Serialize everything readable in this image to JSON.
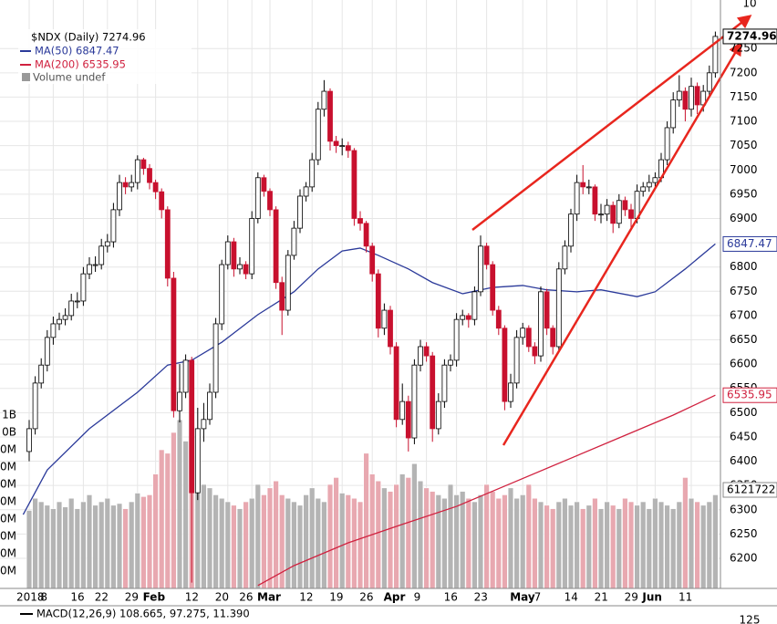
{
  "chart_data": {
    "type": "candlestick",
    "title": "$NDX (Daily) 7274.96",
    "open": [
      6420,
      6467,
      6561,
      6598,
      6655,
      6683,
      6692,
      6700,
      6730,
      6730,
      6786,
      6805,
      6805,
      6843,
      6852,
      6918,
      6974,
      6965,
      6974,
      7021,
      7003,
      6974,
      6955,
      6918,
      6777,
      6504,
      6542,
      6608,
      6335,
      6467,
      6486,
      6542,
      6683,
      6805,
      6852,
      6796,
      6805,
      6786,
      6900,
      6984,
      6956,
      6918,
      6768,
      6711,
      6824,
      6880,
      6946,
      6965,
      7021,
      7125,
      7162,
      7059,
      7050,
      7050,
      7040,
      6900,
      6890,
      6843,
      6786,
      6674,
      6711,
      6636,
      6486,
      6523,
      6448,
      6598,
      6636,
      6617,
      6467,
      6523,
      6598,
      6608,
      6692,
      6700,
      6692,
      6749,
      6843,
      6805,
      6711,
      6674,
      6523,
      6561,
      6655,
      6674,
      6636,
      6617,
      6749,
      6674,
      6636,
      6796,
      6843,
      6909,
      6974,
      6965,
      6965,
      6909,
      6909,
      6927,
      6890,
      6937,
      6918,
      6900,
      6956,
      6965,
      6974,
      6984,
      7021,
      7087,
      7144,
      7162,
      7125,
      7172,
      7134,
      7162,
      7200
    ],
    "high": [
      6485,
      6575,
      6612,
      6670,
      6698,
      6706,
      6715,
      6745,
      6748,
      6800,
      6820,
      6822,
      6858,
      6868,
      6932,
      6990,
      6985,
      6990,
      7030,
      7025,
      7012,
      6980,
      6962,
      6925,
      6790,
      6600,
      6620,
      6615,
      6510,
      6520,
      6560,
      6695,
      6815,
      6865,
      6860,
      6820,
      6812,
      6915,
      6995,
      6990,
      6962,
      6925,
      6780,
      6835,
      6895,
      6960,
      6975,
      7035,
      7140,
      7185,
      7168,
      7070,
      7065,
      7058,
      7045,
      6915,
      6895,
      6850,
      6795,
      6725,
      6720,
      6645,
      6560,
      6535,
      6610,
      6650,
      6645,
      6625,
      6540,
      6610,
      6620,
      6705,
      6712,
      6705,
      6760,
      6865,
      6850,
      6812,
      6720,
      6680,
      6580,
      6670,
      6685,
      6680,
      6645,
      6760,
      6755,
      6680,
      6810,
      6855,
      6920,
      6990,
      7010,
      6980,
      6970,
      6930,
      6940,
      6935,
      6950,
      6945,
      6930,
      6970,
      6975,
      6990,
      6995,
      7035,
      7100,
      7160,
      7195,
      7170,
      7190,
      7180,
      7175,
      7215,
      7285
    ],
    "low": [
      6400,
      6455,
      6550,
      6585,
      6640,
      6670,
      6680,
      6690,
      6715,
      6720,
      6775,
      6790,
      6795,
      6830,
      6840,
      6905,
      6950,
      6955,
      6960,
      6990,
      6960,
      6940,
      6900,
      6760,
      6490,
      6480,
      6530,
      6150,
      6320,
      6440,
      6475,
      6530,
      6670,
      6795,
      6780,
      6785,
      6775,
      6775,
      6890,
      6945,
      6905,
      6755,
      6660,
      6700,
      6815,
      6870,
      6935,
      6955,
      7010,
      7110,
      7040,
      7035,
      7030,
      7025,
      6885,
      6875,
      6830,
      6770,
      6655,
      6660,
      6620,
      6470,
      6475,
      6420,
      6435,
      6585,
      6605,
      6440,
      6455,
      6510,
      6585,
      6595,
      6680,
      6675,
      6680,
      6740,
      6795,
      6700,
      6660,
      6505,
      6510,
      6550,
      6640,
      6625,
      6600,
      6605,
      6660,
      6620,
      6625,
      6785,
      6830,
      6895,
      6950,
      6950,
      6895,
      6890,
      6895,
      6870,
      6880,
      6905,
      6880,
      6890,
      6945,
      6955,
      6960,
      6975,
      7010,
      7075,
      7130,
      7100,
      7110,
      7115,
      7120,
      7150,
      7190
    ],
    "close": [
      6467,
      6561,
      6598,
      6655,
      6683,
      6692,
      6700,
      6730,
      6730,
      6786,
      6805,
      6805,
      6843,
      6852,
      6918,
      6974,
      6965,
      6974,
      7021,
      7003,
      6974,
      6955,
      6918,
      6777,
      6504,
      6542,
      6608,
      6335,
      6467,
      6486,
      6542,
      6683,
      6805,
      6852,
      6796,
      6805,
      6786,
      6900,
      6984,
      6956,
      6918,
      6768,
      6711,
      6824,
      6880,
      6946,
      6965,
      7021,
      7125,
      7162,
      7059,
      7050,
      7050,
      7040,
      6900,
      6890,
      6843,
      6786,
      6674,
      6711,
      6636,
      6486,
      6523,
      6448,
      6598,
      6636,
      6617,
      6467,
      6523,
      6598,
      6608,
      6692,
      6700,
      6692,
      6749,
      6843,
      6805,
      6711,
      6674,
      6523,
      6561,
      6655,
      6674,
      6636,
      6617,
      6749,
      6674,
      6636,
      6796,
      6843,
      6909,
      6974,
      6965,
      6965,
      6909,
      6909,
      6927,
      6890,
      6937,
      6918,
      6900,
      6956,
      6965,
      6974,
      6984,
      7021,
      7087,
      7144,
      7162,
      7125,
      7172,
      7134,
      7162,
      7200,
      7274.96
    ],
    "up_color": "#ffffff",
    "down_color": "#c8102e",
    "xticks": [
      {
        "value": 0,
        "label": "2018"
      },
      {
        "value": 4,
        "label": "8"
      },
      {
        "value": 9,
        "label": "16"
      },
      {
        "value": 13,
        "label": "22"
      },
      {
        "value": 18,
        "label": "29"
      },
      {
        "value": 21,
        "label": "Feb"
      },
      {
        "value": 28,
        "label": "12"
      },
      {
        "value": 33,
        "label": "20"
      },
      {
        "value": 37,
        "label": "26"
      },
      {
        "value": 40,
        "label": "Mar"
      },
      {
        "value": 47,
        "label": "12"
      },
      {
        "value": 52,
        "label": "19"
      },
      {
        "value": 57,
        "label": "26"
      },
      {
        "value": 61,
        "label": "Apr"
      },
      {
        "value": 66,
        "label": "9"
      },
      {
        "value": 71,
        "label": "16"
      },
      {
        "value": 76,
        "label": "23"
      },
      {
        "value": 82,
        "label": "May"
      },
      {
        "value": 86,
        "label": "7"
      },
      {
        "value": 91,
        "label": "14"
      },
      {
        "value": 96,
        "label": "21"
      },
      {
        "value": 101,
        "label": "29"
      },
      {
        "value": 104,
        "label": "Jun"
      },
      {
        "value": 110,
        "label": "11"
      }
    ],
    "ylim": [
      6138,
      7350
    ],
    "yticks": [
      6200,
      6250,
      6300,
      6350,
      6400,
      6450,
      6500,
      6550,
      6600,
      6650,
      6700,
      6750,
      6800,
      6850,
      6900,
      6950,
      7000,
      7050,
      7100,
      7150,
      7200,
      7250
    ],
    "grid": true,
    "series": [
      {
        "name": "MA(50) 6847.47",
        "color": "#2b3a9a",
        "x": [
          -1,
          3,
          10,
          18,
          23,
          27,
          32,
          38,
          44,
          48,
          52,
          55,
          58,
          63,
          67,
          72,
          77,
          82,
          86,
          91,
          95,
          101,
          104,
          109,
          114
        ],
        "values": [
          6290,
          6382,
          6467,
          6542,
          6598,
          6608,
          6645,
          6702,
          6749,
          6796,
          6833,
          6839,
          6824,
          6796,
          6768,
          6745,
          6758,
          6762,
          6753,
          6749,
          6753,
          6739,
          6749,
          6796,
          6847.47
        ]
      },
      {
        "name": "MA(200) 6535.95",
        "color": "#d0213f",
        "x": [
          38,
          44,
          53,
          62,
          71,
          80,
          89,
          98,
          107,
          114
        ],
        "values": [
          6144,
          6185,
          6232,
          6270,
          6307,
          6354,
          6401,
          6448,
          6495,
          6535.95
        ]
      }
    ],
    "volume": {
      "name": "Volume undef",
      "up_color": "#b4b4b4",
      "down_color": "#e8a8b0",
      "values": [
        550,
        620,
        600,
        580,
        560,
        600,
        570,
        620,
        560,
        600,
        640,
        580,
        600,
        620,
        580,
        590,
        560,
        600,
        650,
        630,
        640,
        760,
        900,
        880,
        1000,
        1073,
        950,
        900,
        860,
        700,
        680,
        640,
        620,
        600,
        580,
        560,
        600,
        620,
        700,
        640,
        680,
        720,
        640,
        620,
        600,
        580,
        640,
        680,
        620,
        600,
        700,
        740,
        650,
        640,
        620,
        600,
        880,
        760,
        720,
        680,
        660,
        700,
        760,
        740,
        820,
        720,
        680,
        660,
        640,
        620,
        700,
        640,
        660,
        620,
        600,
        640,
        700,
        660,
        620,
        640,
        680,
        620,
        640,
        700,
        620,
        600,
        580,
        560,
        600,
        620,
        580,
        600,
        560,
        580,
        620,
        560,
        600,
        580,
        560,
        620,
        600,
        580,
        600,
        560,
        620,
        600,
        580,
        560,
        600,
        740,
        620,
        600,
        580,
        600,
        640
      ],
      "y2lim": [
        100,
        3495
      ],
      "y2ticks": [
        {
          "value": 1100,
          "label": "1B"
        },
        {
          "value": 1000,
          "label": "0B"
        },
        {
          "value": 900,
          "label": "0M"
        },
        {
          "value": 800,
          "label": "0M"
        },
        {
          "value": 700,
          "label": "0M"
        },
        {
          "value": 600,
          "label": "0M"
        },
        {
          "value": 500,
          "label": "0M"
        },
        {
          "value": 400,
          "label": "0M"
        },
        {
          "value": 300,
          "label": "0M"
        },
        {
          "value": 200,
          "label": "0M"
        }
      ],
      "tag": "6121722"
    },
    "tags": [
      {
        "value": 7274.96,
        "color": "#000000"
      },
      {
        "value": 6847.47,
        "color": "#2b3a9a"
      },
      {
        "value": 6535.95,
        "color": "#d0213f"
      }
    ],
    "macd_label": "MACD(12,26,9) 108.665, 97.275, 11.390",
    "top_label": "10",
    "bottom_label": "125"
  }
}
